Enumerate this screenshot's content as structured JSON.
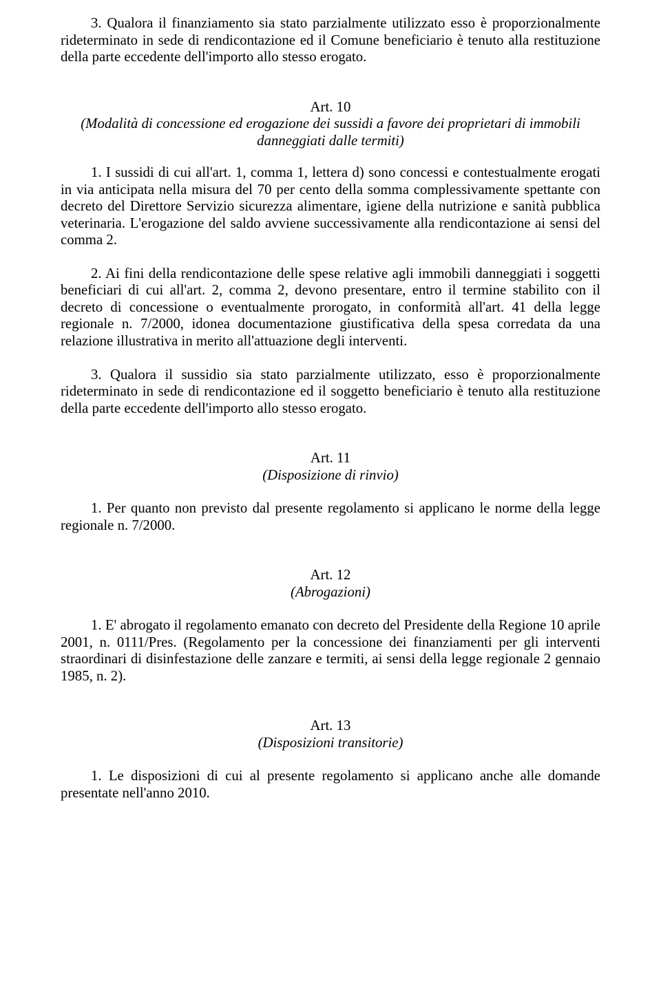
{
  "intro_para": "3. Qualora il finanziamento sia stato parzialmente utilizzato esso è proporzionalmente rideterminato in sede di rendicontazione ed il Comune beneficiario è tenuto alla restituzione della parte eccedente dell'importo allo stesso erogato.",
  "art10": {
    "num": "Art. 10",
    "title": "(Modalità di concessione ed erogazione dei sussidi a favore dei proprietari di immobili danneggiati dalle termiti)",
    "p1": "1. I sussidi di cui all'art. 1, comma 1, lettera d) sono concessi e contestualmente erogati in via anticipata nella misura del 70 per cento della somma complessivamente spettante con decreto del Direttore Servizio sicurezza alimentare, igiene della nutrizione e sanità pubblica veterinaria. L'erogazione del saldo avviene successivamente alla rendicontazione ai sensi del comma 2.",
    "p2": "2. Ai fini della rendicontazione delle spese relative agli immobili danneggiati i soggetti beneficiari di cui all'art. 2, comma 2, devono presentare, entro il termine stabilito con il decreto di concessione o eventualmente prorogato, in conformità all'art. 41 della legge regionale n. 7/2000, idonea documentazione giustificativa della spesa corredata da una relazione illustrativa in merito all'attuazione degli interventi.",
    "p3": "3. Qualora il sussidio sia stato parzialmente utilizzato, esso è proporzionalmente rideterminato in sede di rendicontazione ed il soggetto beneficiario è tenuto alla restituzione della parte eccedente dell'importo allo stesso erogato."
  },
  "art11": {
    "num": "Art. 11",
    "title": "(Disposizione di rinvio)",
    "p1": "1. Per quanto non previsto dal presente regolamento si applicano le norme della legge regionale n. 7/2000."
  },
  "art12": {
    "num": "Art. 12",
    "title": "(Abrogazioni)",
    "p1": "1. E' abrogato il regolamento emanato con decreto del Presidente della Regione 10 aprile 2001, n. 0111/Pres. (Regolamento per la concessione dei finanziamenti per gli interventi straordinari di disinfestazione delle zanzare e termiti, ai sensi della legge regionale 2 gennaio 1985, n. 2)."
  },
  "art13": {
    "num": "Art. 13",
    "title": "(Disposizioni transitorie)",
    "p1": "1. Le disposizioni di cui al presente regolamento si applicano anche alle domande presentate nell'anno 2010."
  }
}
